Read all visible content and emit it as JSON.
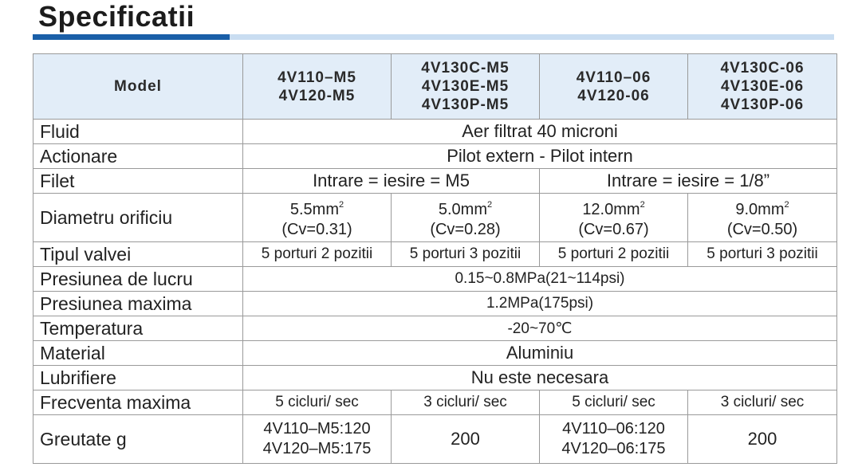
{
  "title": "Specificatii",
  "header": {
    "model": "Model",
    "col1": [
      "4V110–M5",
      "4V120-M5"
    ],
    "col2": [
      "4V130C-M5",
      "4V130E-M5",
      "4V130P-M5"
    ],
    "col3": [
      "4V110–06",
      "4V120-06"
    ],
    "col4": [
      "4V130C-06",
      "4V130E-06",
      "4V130P-06"
    ]
  },
  "rows": {
    "fluid": {
      "label": "Fluid",
      "value": "Aer filtrat 40 microni"
    },
    "actionare": {
      "label": "Actionare",
      "value": "Pilot extern - Pilot intern"
    },
    "filet": {
      "label": "Filet",
      "left": "Intrare = iesire = M5",
      "right": "Intrare = iesire = 1/8”"
    },
    "diametru": {
      "label": "Diametru orificiu",
      "cells": [
        {
          "size": "5.5mm",
          "sup": "2",
          "cv": "(Cv=0.31)"
        },
        {
          "size": "5.0mm",
          "sup": "2",
          "cv": "(Cv=0.28)"
        },
        {
          "size": "12.0mm",
          "sup": "2",
          "cv": "(Cv=0.67)"
        },
        {
          "size": "9.0mm",
          "sup": "2",
          "cv": "(Cv=0.50)"
        }
      ]
    },
    "tipul": {
      "label": "Tipul valvei",
      "cells": [
        "5 porturi 2 pozitii",
        "5 porturi 3 pozitii",
        "5 porturi 2 pozitii",
        "5 porturi 3 pozitii"
      ]
    },
    "presiunea_lucru": {
      "label": "Presiunea de lucru",
      "value": "0.15~0.8MPa(21~114psi)"
    },
    "presiunea_max": {
      "label": "Presiunea maxima",
      "value": "1.2MPa(175psi)"
    },
    "temperatura": {
      "label": "Temperatura",
      "value": "-20~70℃"
    },
    "material": {
      "label": "Material",
      "value": "Aluminiu"
    },
    "lubrifiere": {
      "label": "Lubrifiere",
      "value": "Nu este necesara"
    },
    "frecventa": {
      "label": "Frecventa maxima",
      "cells": [
        "5 cicluri/ sec",
        "3 cicluri/ sec",
        "5 cicluri/ sec",
        "3 cicluri/ sec"
      ]
    },
    "greutate": {
      "label": "Greutate g",
      "c1": [
        "4V110–M5:120",
        "4V120–M5:175"
      ],
      "c2": "200",
      "c3": [
        "4V110–06:120",
        "4V120–06:175"
      ],
      "c4": "200"
    }
  }
}
